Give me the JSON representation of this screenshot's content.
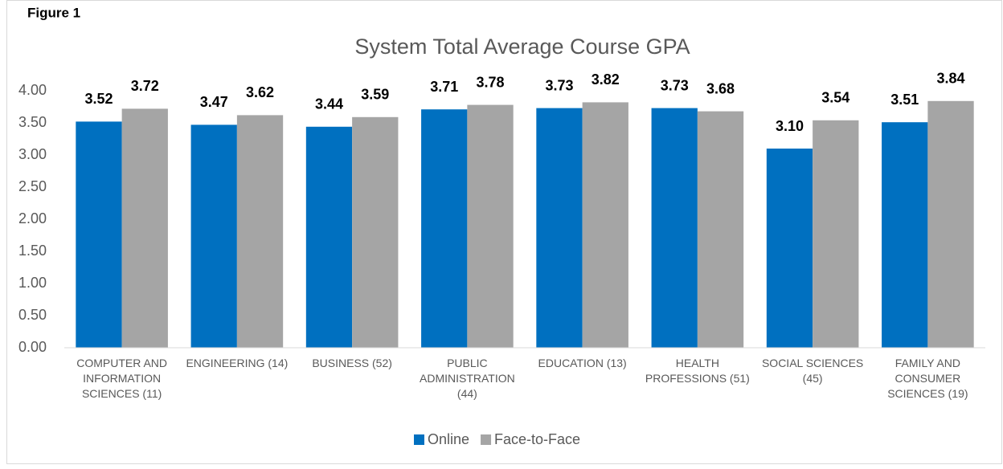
{
  "figure_label": "Figure 1",
  "chart_data": {
    "type": "bar",
    "title": "System Total Average Course GPA",
    "categories": [
      "COMPUTER AND INFORMATION SCIENCES (11)",
      "ENGINEERING (14)",
      "BUSINESS (52)",
      "PUBLIC ADMINISTRATION (44)",
      "EDUCATION (13)",
      "HEALTH PROFESSIONS (51)",
      "SOCIAL SCIENCES (45)",
      "FAMILY AND CONSUMER SCIENCES (19)"
    ],
    "series": [
      {
        "name": "Online",
        "color": "#0070c0",
        "values": [
          3.52,
          3.47,
          3.44,
          3.71,
          3.73,
          3.73,
          3.1,
          3.51
        ],
        "value_labels": [
          "3.52",
          "3.47",
          "3.44",
          "3.71",
          "3.73",
          "3.73",
          "3.10",
          "3.51"
        ]
      },
      {
        "name": "Face-to-Face",
        "color": "#a5a5a5",
        "values": [
          3.72,
          3.62,
          3.59,
          3.78,
          3.82,
          3.68,
          3.54,
          3.84
        ],
        "value_labels": [
          "3.72",
          "3.62",
          "3.59",
          "3.78",
          "3.82",
          "3.68",
          "3.54",
          "3.84"
        ]
      }
    ],
    "ylim": [
      0,
      4
    ],
    "yticks": [
      {
        "value": 0,
        "label": "0.00"
      },
      {
        "value": 0.5,
        "label": "0.50"
      },
      {
        "value": 1,
        "label": "1.00"
      },
      {
        "value": 1.5,
        "label": "1.50"
      },
      {
        "value": 2,
        "label": "2.00"
      },
      {
        "value": 2.5,
        "label": "2.50"
      },
      {
        "value": 3,
        "label": "3.00"
      },
      {
        "value": 3.5,
        "label": "3.50"
      },
      {
        "value": 4,
        "label": "4.00"
      }
    ],
    "legend": "bottom"
  }
}
